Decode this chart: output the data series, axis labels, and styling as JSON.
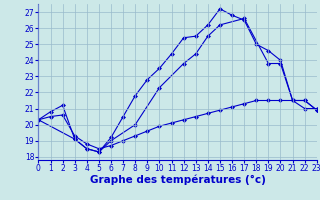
{
  "xlabel": "Graphe des températures (°c)",
  "bg_color": "#cce8e8",
  "line_color": "#0000cc",
  "grid_color": "#99bbcc",
  "x_ticks": [
    0,
    1,
    2,
    3,
    4,
    5,
    6,
    7,
    8,
    9,
    10,
    11,
    12,
    13,
    14,
    15,
    16,
    17,
    18,
    19,
    20,
    21,
    22,
    23
  ],
  "y_ticks": [
    18,
    19,
    20,
    21,
    22,
    23,
    24,
    25,
    26,
    27
  ],
  "xlim": [
    0,
    23
  ],
  "ylim": [
    17.8,
    27.5
  ],
  "line1_x": [
    0,
    1,
    2,
    3,
    4,
    5,
    6,
    7,
    8,
    9,
    10,
    11,
    12,
    13,
    14,
    15,
    16,
    17,
    18,
    19,
    20,
    21,
    22,
    23
  ],
  "line1_y": [
    20.3,
    20.8,
    21.2,
    19.1,
    18.5,
    18.3,
    19.2,
    20.5,
    21.8,
    22.8,
    23.5,
    24.4,
    25.4,
    25.5,
    26.2,
    27.2,
    26.8,
    26.5,
    25.0,
    24.6,
    24.0,
    21.5,
    21.5,
    20.9
  ],
  "line2_x": [
    0,
    3,
    4,
    5,
    6,
    8,
    10,
    12,
    13,
    14,
    15,
    17,
    19,
    20,
    21,
    22,
    23
  ],
  "line2_y": [
    20.3,
    19.1,
    18.5,
    18.3,
    19.0,
    20.0,
    22.3,
    23.8,
    24.4,
    25.5,
    26.2,
    26.6,
    23.8,
    23.8,
    21.5,
    21.5,
    20.9
  ],
  "line3_x": [
    0,
    1,
    2,
    3,
    4,
    5,
    6,
    7,
    8,
    9,
    10,
    11,
    12,
    13,
    14,
    15,
    16,
    17,
    18,
    19,
    20,
    21,
    22,
    23
  ],
  "line3_y": [
    20.3,
    20.5,
    20.6,
    19.3,
    18.8,
    18.5,
    18.7,
    19.0,
    19.3,
    19.6,
    19.9,
    20.1,
    20.3,
    20.5,
    20.7,
    20.9,
    21.1,
    21.3,
    21.5,
    21.5,
    21.5,
    21.5,
    21.0,
    21.0
  ],
  "marker": "D",
  "marker_size": 2.0,
  "line_width": 0.8,
  "tick_fontsize": 5.5,
  "xlabel_fontsize": 7.5,
  "figsize": [
    3.2,
    2.0
  ],
  "dpi": 100
}
